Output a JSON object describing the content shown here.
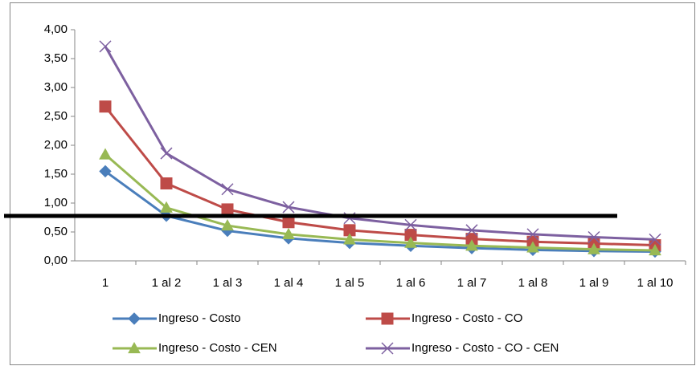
{
  "chart_data": {
    "type": "line",
    "categories": [
      "1",
      "1 al 2",
      "1 al 3",
      "1 al 4",
      "1 al 5",
      "1 al 6",
      "1 al 7",
      "1 al 8",
      "1 al 9",
      "1 al 10"
    ],
    "series": [
      {
        "name": "Ingreso - Costo",
        "color": "#4a7ebb",
        "marker": "diamond",
        "values": [
          1.55,
          0.78,
          0.52,
          0.39,
          0.31,
          0.26,
          0.22,
          0.19,
          0.17,
          0.16
        ]
      },
      {
        "name": "Ingreso - Costo - CO",
        "color": "#be4b48",
        "marker": "square",
        "values": [
          2.67,
          1.34,
          0.89,
          0.67,
          0.53,
          0.45,
          0.38,
          0.33,
          0.3,
          0.27
        ]
      },
      {
        "name": "Ingreso - Costo - CEN",
        "color": "#98b954",
        "marker": "triangle",
        "values": [
          1.84,
          0.92,
          0.61,
          0.46,
          0.37,
          0.31,
          0.26,
          0.23,
          0.2,
          0.18
        ]
      },
      {
        "name": "Ingreso - Costo - CO - CEN",
        "color": "#7d60a0",
        "marker": "x",
        "values": [
          3.71,
          1.86,
          1.24,
          0.93,
          0.74,
          0.62,
          0.53,
          0.46,
          0.41,
          0.37
        ]
      }
    ],
    "ylim": [
      0,
      4
    ],
    "yticks": [
      {
        "value": 0,
        "label": "0,00"
      },
      {
        "value": 0.5,
        "label": "0,50"
      },
      {
        "value": 1,
        "label": "1,00"
      },
      {
        "value": 1.5,
        "label": "1,50"
      },
      {
        "value": 2,
        "label": "2,00"
      },
      {
        "value": 2.5,
        "label": "2,50"
      },
      {
        "value": 3,
        "label": "3,00"
      },
      {
        "value": 3.5,
        "label": "3,50"
      },
      {
        "value": 4,
        "label": "4,00"
      }
    ],
    "legend": "bottom"
  }
}
